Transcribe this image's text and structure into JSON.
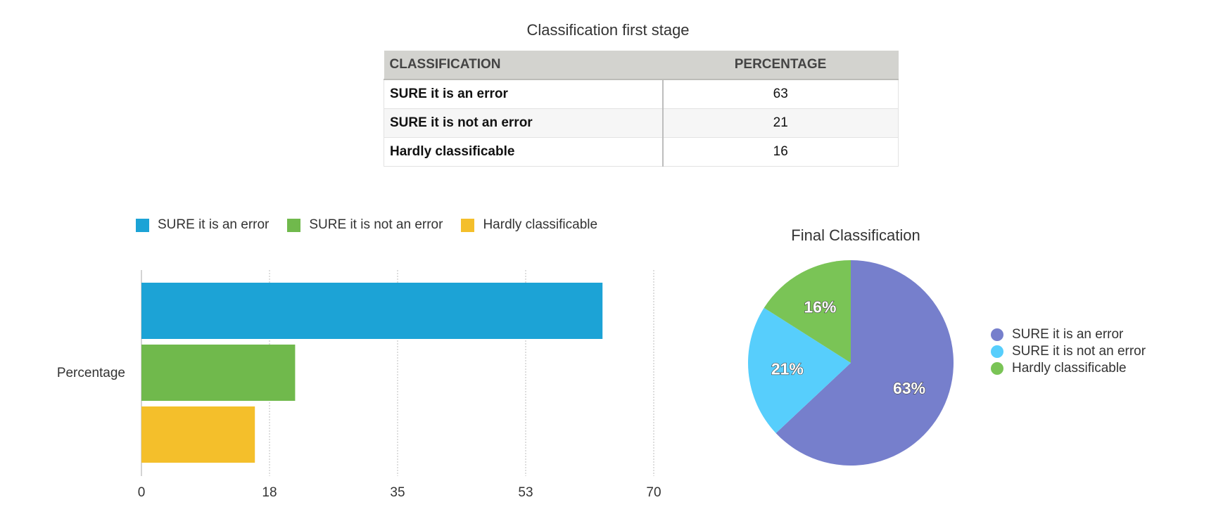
{
  "table": {
    "title": "Classification first stage",
    "headers": [
      "CLASSIFICATION",
      "PERCENTAGE"
    ],
    "rows": [
      {
        "label": "SURE it is an error",
        "value": "63"
      },
      {
        "label": "SURE it is not an error",
        "value": "21"
      },
      {
        "label": "Hardly classificable",
        "value": "16"
      }
    ]
  },
  "chart_data": [
    {
      "type": "bar",
      "orientation": "horizontal",
      "title": "",
      "categories": [
        "Percentage"
      ],
      "series": [
        {
          "name": "SURE it is an error",
          "values": [
            63
          ],
          "color": "#1ca3d6"
        },
        {
          "name": "SURE it is not an error",
          "values": [
            21
          ],
          "color": "#70b94c"
        },
        {
          "name": "Hardly classificable",
          "values": [
            15.5
          ],
          "color": "#f4bf2b"
        }
      ],
      "xlim": [
        0,
        70
      ],
      "xticks": [
        "0",
        "18",
        "35",
        "53",
        "70"
      ],
      "xtick_values": [
        0,
        17.5,
        35,
        52.5,
        70
      ],
      "grid": true,
      "legend": "top-left"
    },
    {
      "type": "pie",
      "title": "Final Classification",
      "slices": [
        {
          "label": "SURE it is an error",
          "value": 63,
          "display": "63%",
          "color": "#767fcc"
        },
        {
          "label": "SURE it is not an error",
          "value": 21,
          "display": "21%",
          "color": "#57cefc"
        },
        {
          "label": "Hardly classificable",
          "value": 16,
          "display": "16%",
          "color": "#7ac456"
        }
      ],
      "legend": "right"
    }
  ]
}
